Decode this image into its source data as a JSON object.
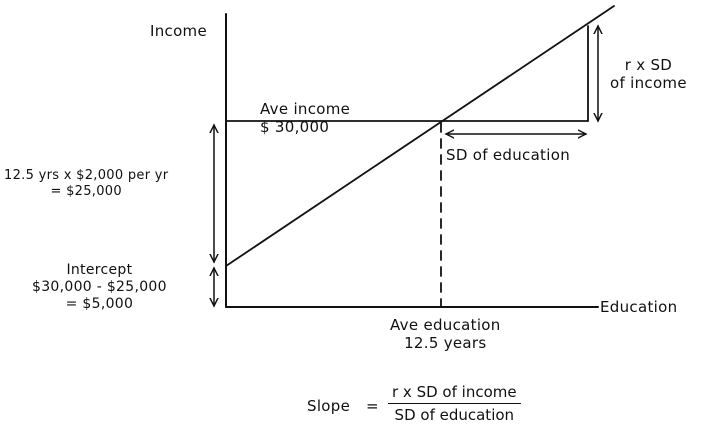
{
  "axes": {
    "y_label": "Income",
    "x_label": "Education"
  },
  "labels": {
    "ave_income": [
      "Ave income",
      "$ 30,000"
    ],
    "sd_education": "SD of education",
    "r_sd_income": [
      "r x SD",
      "of income"
    ],
    "rise": [
      "12.5 yrs x $2,000 per yr",
      "= $25,000"
    ],
    "intercept": [
      "Intercept",
      "$30,000 - $25,000",
      "= $5,000"
    ],
    "ave_education": [
      "Ave education",
      "12.5 years"
    ]
  },
  "formula": {
    "lhs": "Slope",
    "equals": "=",
    "numerator": "r x SD of income",
    "denominator": "SD of education"
  }
}
